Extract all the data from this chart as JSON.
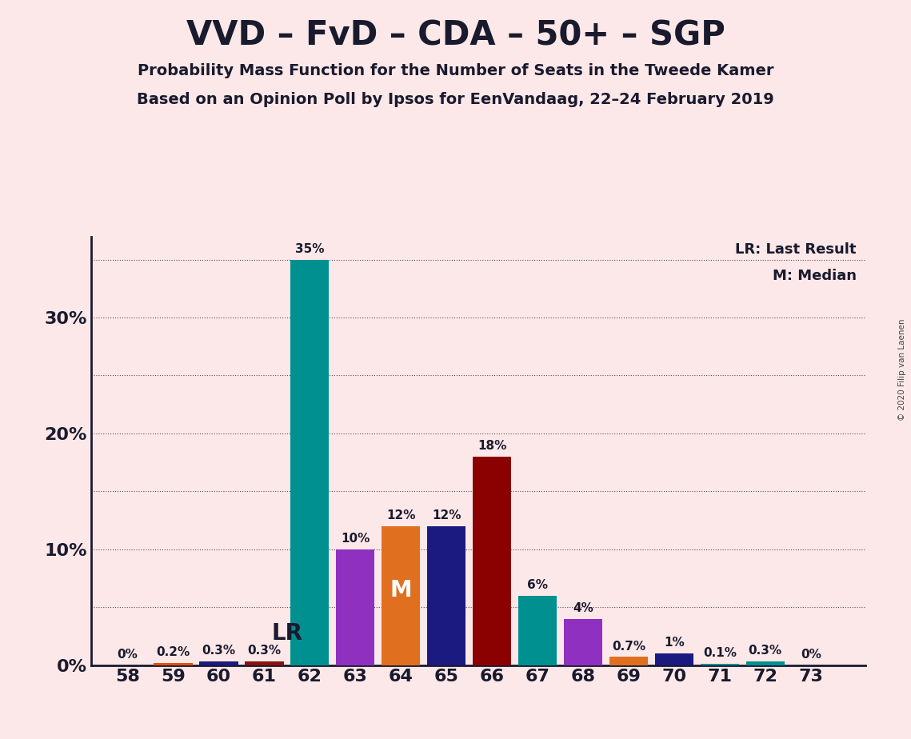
{
  "title": "VVD – FvD – CDA – 50+ – SGP",
  "subtitle1": "Probability Mass Function for the Number of Seats in the Tweede Kamer",
  "subtitle2": "Based on an Opinion Poll by Ipsos for EenVandaag, 22–24 February 2019",
  "copyright": "© 2020 Filip van Laenen",
  "legend_lr": "LR: Last Result",
  "legend_m": "M: Median",
  "background_color": "#fce8e8",
  "seats": [
    58,
    59,
    60,
    61,
    62,
    63,
    64,
    65,
    66,
    67,
    68,
    69,
    70,
    71,
    72,
    73
  ],
  "values": [
    0.0,
    0.2,
    0.3,
    0.3,
    35.0,
    10.0,
    12.0,
    12.0,
    18.0,
    6.0,
    4.0,
    0.7,
    1.0,
    0.1,
    0.3,
    0.0
  ],
  "bar_colors_map": {
    "58": "#2e8b57",
    "59": "#e05010",
    "60": "#1a1a80",
    "61": "#8b1010",
    "62": "#009090",
    "63": "#9030c0",
    "64": "#e07020",
    "65": "#1a1a80",
    "66": "#8b0000",
    "67": "#009090",
    "68": "#9030c0",
    "69": "#e07020",
    "70": "#1a1a80",
    "71": "#009090",
    "72": "#009090",
    "73": "#2e8b57"
  },
  "ylim": [
    0,
    37
  ],
  "yticks": [
    0,
    10,
    20,
    30
  ],
  "ytick_labels": [
    "0%",
    "10%",
    "20%",
    "30%"
  ],
  "grid_y_values": [
    5,
    10,
    15,
    20,
    25,
    30,
    35
  ],
  "title_fontsize": 30,
  "subtitle_fontsize": 14,
  "tick_fontsize": 16,
  "bar_label_fontsize": 11
}
